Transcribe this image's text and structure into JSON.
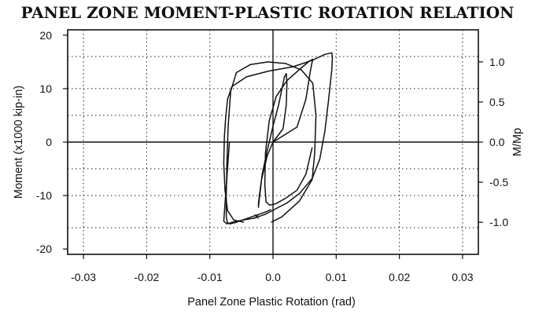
{
  "chart_data": {
    "type": "line",
    "title": "PANEL ZONE MOMENT-PLASTIC ROTATION RELATION",
    "xlabel": "Panel Zone Plastic Rotation (rad)",
    "ylabel": "Moment (x1000 kip-in)",
    "y2label": "M/Mp",
    "xlim": [
      -0.0325,
      0.0325
    ],
    "ylim": [
      -21,
      21
    ],
    "y2lim": [
      -1.4,
      1.4
    ],
    "x_ticks": [
      -0.03,
      -0.02,
      -0.01,
      0.0,
      0.01,
      0.02,
      0.03
    ],
    "x_tick_labels": [
      "-0.03",
      "-0.02",
      "-0.01",
      "0.0",
      "0.01",
      "0.02",
      "0.03"
    ],
    "y_ticks": [
      -20,
      -10,
      0,
      10,
      20
    ],
    "y_tick_labels": [
      "-20",
      "-10",
      "0",
      "10",
      "20"
    ],
    "y2_ticks": [
      -1.0,
      -0.5,
      0.0,
      0.5,
      1.0
    ],
    "y2_tick_labels": [
      "-1.0",
      "-0.5",
      "0.0",
      "0.5",
      "1.0"
    ],
    "grid_x": [
      -0.03,
      -0.02,
      -0.01,
      0.0,
      0.01,
      0.02,
      0.03
    ],
    "grid_y": [
      -16,
      -10,
      -5,
      0,
      5,
      10,
      16
    ],
    "grid": true,
    "series": [
      {
        "x": [
          0.0,
          0.0016,
          0.0021,
          0.0022,
          0.0021,
          0.0018,
          0.0009,
          0.0,
          -0.0009,
          -0.0017,
          -0.0021,
          -0.0023,
          -0.0023,
          -0.0022,
          -0.0018,
          -0.0009,
          0.0
        ],
        "y": [
          0.0,
          2.5,
          7.0,
          11.0,
          12.8,
          12.2,
          7.0,
          3.0,
          -1.5,
          -6.0,
          -9.5,
          -11.5,
          -12.2,
          -11.0,
          -7.0,
          -2.5,
          0.0
        ]
      },
      {
        "x": [
          0.0,
          0.0038,
          0.0052,
          0.0058,
          0.0061,
          0.0063,
          0.0058,
          0.0042,
          0.0022,
          0.0005,
          -0.0006,
          -0.0012,
          -0.0013,
          -0.0011,
          -0.0005,
          0.0005,
          0.002,
          0.0038,
          0.0052,
          0.0062
        ],
        "y": [
          0.0,
          2.8,
          8.0,
          12.5,
          14.5,
          15.5,
          15.2,
          13.6,
          11.5,
          8.5,
          4.0,
          -2.0,
          -8.0,
          -11.2,
          -11.8,
          -11.5,
          -10.5,
          -9.0,
          -6.0,
          -1.0
        ]
      },
      {
        "x": [
          -0.0003,
          0.0014,
          0.0042,
          0.0062,
          0.0066,
          0.0068,
          0.0063,
          0.0045,
          0.002,
          -0.0008,
          -0.0036,
          -0.0058,
          -0.0067,
          -0.0071,
          -0.0073,
          -0.0074,
          -0.0074,
          -0.0072,
          -0.0068,
          -0.0058,
          -0.0044,
          -0.0024,
          -0.001,
          -0.0003
        ],
        "y": [
          -15.0,
          -14.0,
          -11.0,
          -7.0,
          -2.0,
          5.0,
          11.0,
          13.5,
          14.7,
          15.0,
          14.5,
          13.0,
          9.5,
          3.0,
          -4.0,
          -10.0,
          -14.0,
          -15.1,
          -15.3,
          -15.0,
          -14.4,
          -13.6,
          -13.0,
          -12.6
        ]
      },
      {
        "x": [
          -0.0069,
          -0.0078,
          -0.0073,
          -0.0064,
          -0.0048,
          -0.0029,
          -0.0012,
          0.0004,
          0.0022,
          0.0042,
          0.0062,
          0.0074,
          0.0082,
          0.0088,
          0.0093,
          0.0094,
          0.0093,
          0.0082,
          0.0062,
          0.0032,
          -0.0006,
          -0.0042,
          -0.0065,
          -0.0072,
          -0.0075,
          -0.0077,
          -0.0078,
          -0.0076,
          -0.0072,
          -0.0062,
          -0.0046
        ],
        "y": [
          0.0,
          -14.8,
          -15.3,
          -15.0,
          -14.6,
          -14.2,
          -13.5,
          -12.5,
          -11.4,
          -9.6,
          -6.8,
          -3.2,
          2.0,
          8.0,
          13.5,
          15.8,
          16.7,
          16.4,
          15.3,
          14.1,
          13.3,
          12.2,
          10.4,
          8.0,
          4.5,
          1.0,
          -4.0,
          -9.0,
          -12.8,
          -14.6,
          -15.0
        ]
      }
    ],
    "annotations": [
      {
        "text": "×",
        "x": -0.0026,
        "y": -14.0
      }
    ]
  }
}
